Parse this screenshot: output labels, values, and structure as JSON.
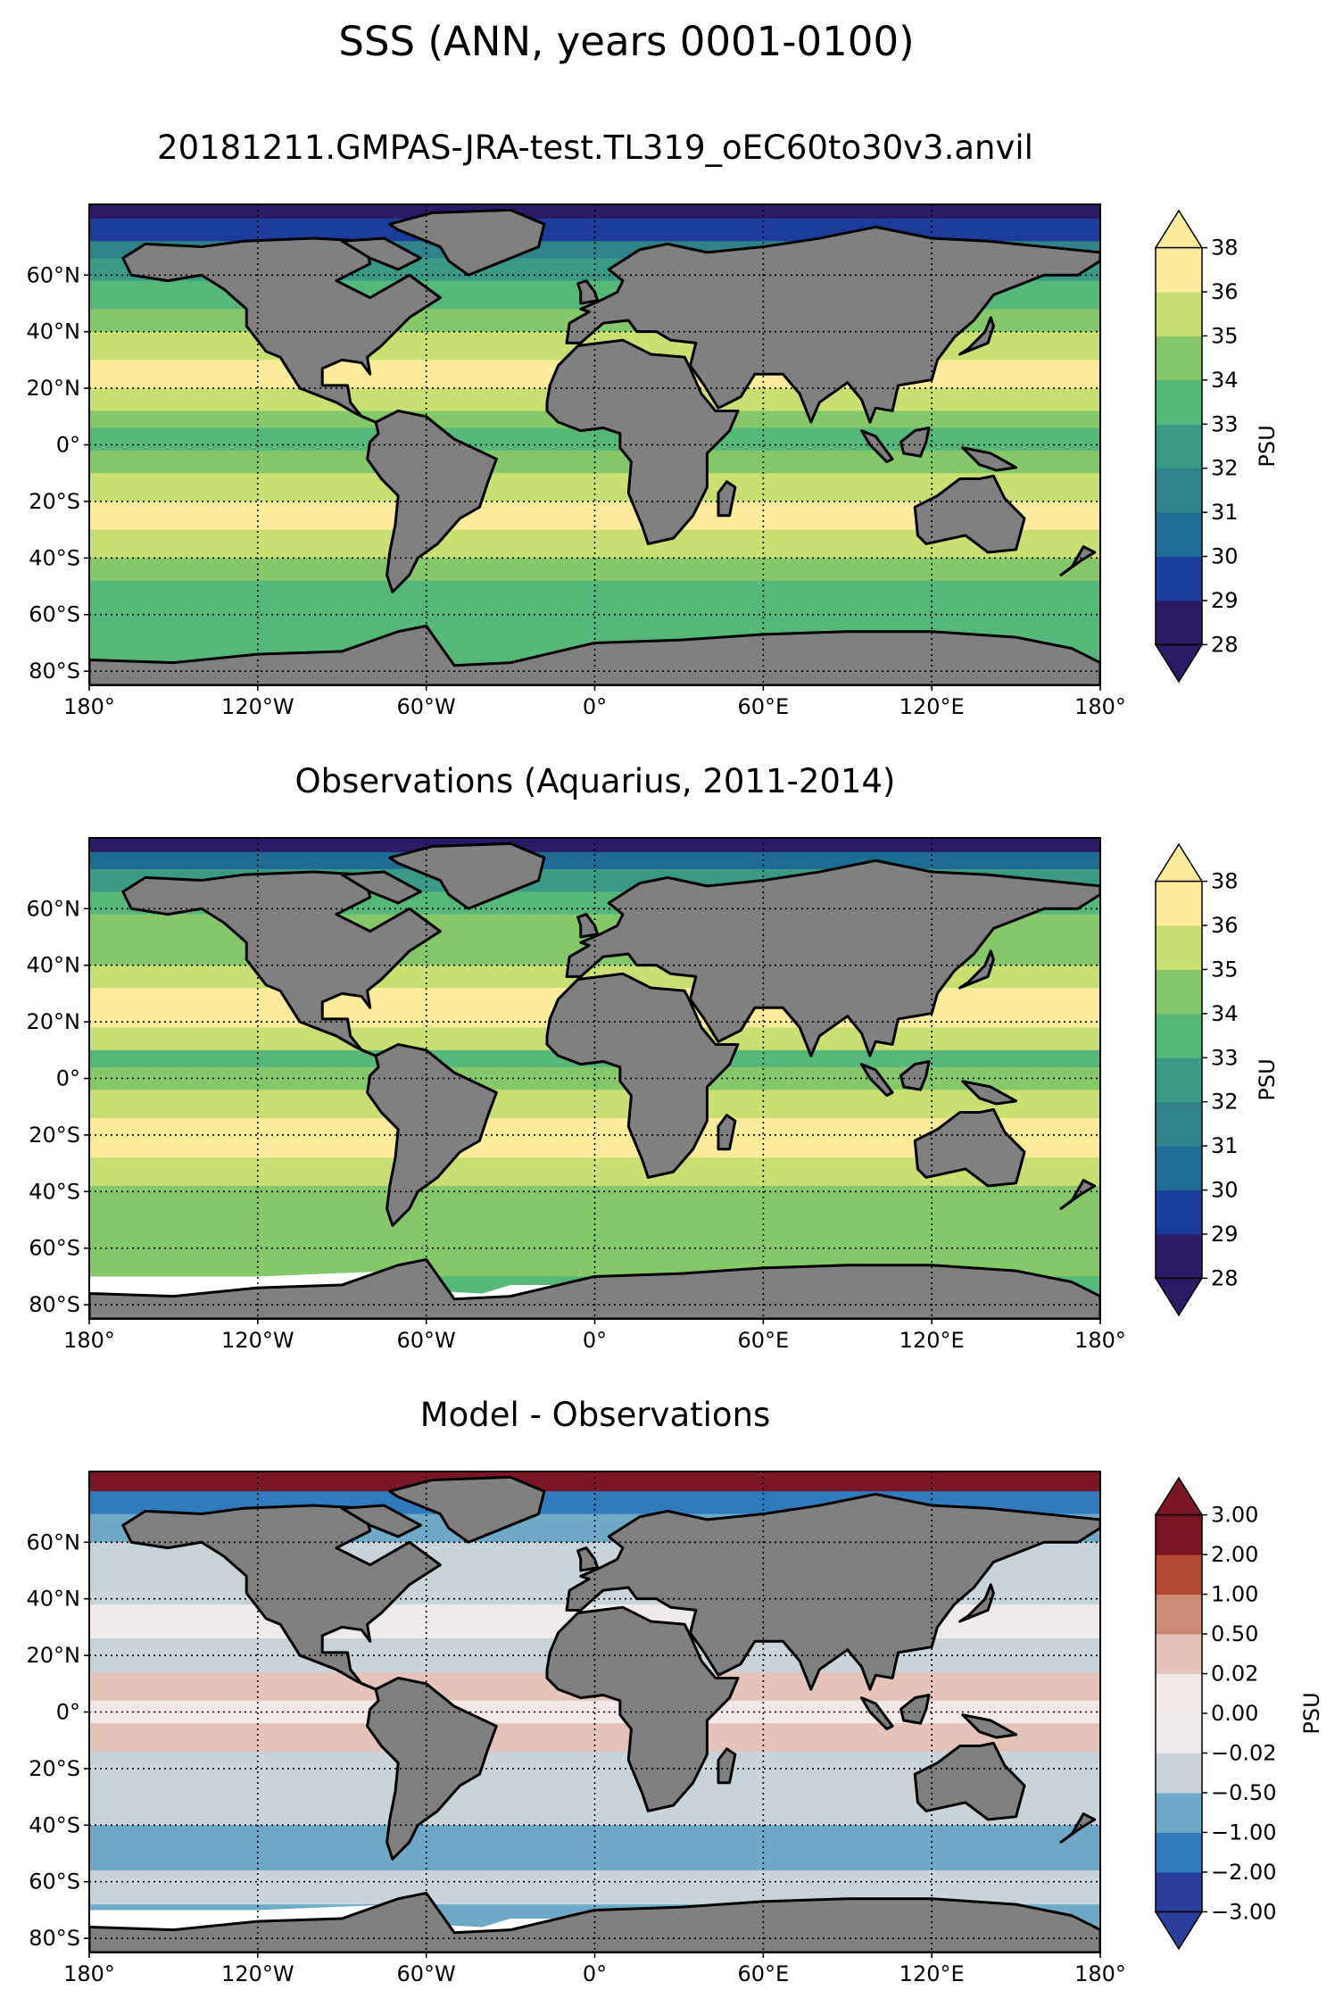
{
  "figure": {
    "suptitle": "SSS (ANN, years 0001-0100)"
  },
  "panels": [
    {
      "title": "20181211.GMPAS-JRA-test.TL319_oEC60to30v3.anvil",
      "colorbar_label": "PSU",
      "colorbar_ticks": [
        "28",
        "29",
        "30",
        "31",
        "32",
        "33",
        "34",
        "35",
        "36",
        "38"
      ],
      "colorbar_colors": [
        "#2b1a66",
        "#1b3c9b",
        "#1e6b94",
        "#2f8287",
        "#3a9a86",
        "#56b77a",
        "#84c86a",
        "#c9df72",
        "#fbeb9b"
      ],
      "extend": "both"
    },
    {
      "title": "Observations (Aquarius, 2011-2014)",
      "colorbar_label": "PSU",
      "colorbar_ticks": [
        "28",
        "29",
        "30",
        "31",
        "32",
        "33",
        "34",
        "35",
        "36",
        "38"
      ],
      "colorbar_colors": [
        "#2b1a66",
        "#1b3c9b",
        "#1e6b94",
        "#2f8287",
        "#3a9a86",
        "#56b77a",
        "#84c86a",
        "#c9df72",
        "#fbeb9b"
      ],
      "extend": "both"
    },
    {
      "title": "Model - Observations",
      "colorbar_label": "PSU",
      "colorbar_ticks": [
        "−3.00",
        "−2.00",
        "−1.00",
        "−0.50",
        "−0.02",
        "0.00",
        "0.02",
        "0.50",
        "1.00",
        "2.00",
        "3.00"
      ],
      "colorbar_colors": [
        "#2a3f9c",
        "#2f7bbd",
        "#6fa9c8",
        "#c8d3da",
        "#eeeaea",
        "#f2e8e8",
        "#e4c3bb",
        "#cf8a73",
        "#b3482f",
        "#7a1626"
      ],
      "extend": "both"
    }
  ],
  "axes": {
    "lon_labels": [
      "180°",
      "120°W",
      "60°W",
      "0°",
      "60°E",
      "120°E",
      "180°"
    ],
    "lat_labels": [
      "60°N",
      "40°N",
      "20°N",
      "0°",
      "20°S",
      "40°S",
      "60°S",
      "80°S"
    ],
    "lat_values": [
      60,
      40,
      20,
      0,
      -20,
      -40,
      -60,
      -80
    ],
    "lon_values": [
      -180,
      -120,
      -60,
      0,
      60,
      120,
      180
    ],
    "lat_range": [
      -85,
      85
    ],
    "lon_range": [
      -180,
      180
    ]
  },
  "colors": {
    "land": "#808080",
    "coast": "#000000",
    "missing": "#ffffff"
  }
}
